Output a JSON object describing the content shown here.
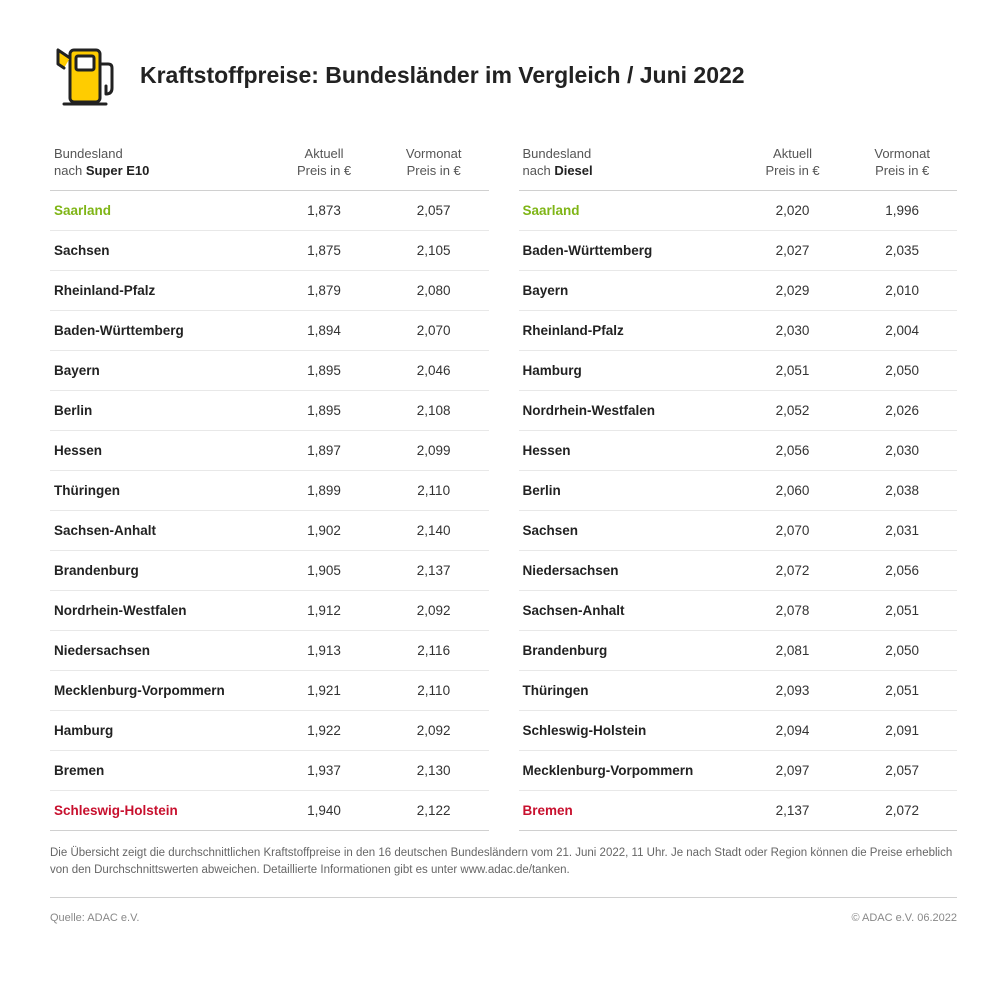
{
  "title": "Kraftstoffpreise: Bundesländer im Vergleich / Juni 2022",
  "colors": {
    "text": "#333333",
    "heading": "#222222",
    "border": "#d0d0d0",
    "row_border": "#e8e8e8",
    "highlight_top": "#7fb516",
    "highlight_bot": "#c8102e",
    "icon_fill": "#ffcc00",
    "icon_stroke": "#222222",
    "footer_text": "#888888"
  },
  "columns": {
    "state_label_prefix": "Bundesland",
    "state_label_sort": "nach ",
    "current_label_l1": "Aktuell",
    "current_label_l2": "Preis in €",
    "prev_label_l1": "Vormonat",
    "prev_label_l2": "Preis in €"
  },
  "tables": [
    {
      "fuel": "Super E10",
      "rows": [
        {
          "state": "Saarland",
          "current": "1,873",
          "prev": "2,057",
          "hl": "top"
        },
        {
          "state": "Sachsen",
          "current": "1,875",
          "prev": "2,105"
        },
        {
          "state": "Rheinland-Pfalz",
          "current": "1,879",
          "prev": "2,080"
        },
        {
          "state": "Baden-Württemberg",
          "current": "1,894",
          "prev": "2,070"
        },
        {
          "state": "Bayern",
          "current": "1,895",
          "prev": "2,046"
        },
        {
          "state": "Berlin",
          "current": "1,895",
          "prev": "2,108"
        },
        {
          "state": "Hessen",
          "current": "1,897",
          "prev": "2,099"
        },
        {
          "state": "Thüringen",
          "current": "1,899",
          "prev": "2,110"
        },
        {
          "state": "Sachsen-Anhalt",
          "current": "1,902",
          "prev": "2,140"
        },
        {
          "state": "Brandenburg",
          "current": "1,905",
          "prev": "2,137"
        },
        {
          "state": "Nordrhein-Westfalen",
          "current": "1,912",
          "prev": "2,092"
        },
        {
          "state": "Niedersachsen",
          "current": "1,913",
          "prev": "2,116"
        },
        {
          "state": "Mecklenburg-Vorpommern",
          "current": "1,921",
          "prev": "2,110"
        },
        {
          "state": "Hamburg",
          "current": "1,922",
          "prev": "2,092"
        },
        {
          "state": "Bremen",
          "current": "1,937",
          "prev": "2,130"
        },
        {
          "state": "Schleswig-Holstein",
          "current": "1,940",
          "prev": "2,122",
          "hl": "bot"
        }
      ]
    },
    {
      "fuel": "Diesel",
      "rows": [
        {
          "state": "Saarland",
          "current": "2,020",
          "prev": "1,996",
          "hl": "top"
        },
        {
          "state": "Baden-Württemberg",
          "current": "2,027",
          "prev": "2,035"
        },
        {
          "state": "Bayern",
          "current": "2,029",
          "prev": "2,010"
        },
        {
          "state": "Rheinland-Pfalz",
          "current": "2,030",
          "prev": "2,004"
        },
        {
          "state": "Hamburg",
          "current": "2,051",
          "prev": "2,050"
        },
        {
          "state": "Nordrhein-Westfalen",
          "current": "2,052",
          "prev": "2,026"
        },
        {
          "state": "Hessen",
          "current": "2,056",
          "prev": "2,030"
        },
        {
          "state": "Berlin",
          "current": "2,060",
          "prev": "2,038"
        },
        {
          "state": "Sachsen",
          "current": "2,070",
          "prev": "2,031"
        },
        {
          "state": "Niedersachsen",
          "current": "2,072",
          "prev": "2,056"
        },
        {
          "state": "Sachsen-Anhalt",
          "current": "2,078",
          "prev": "2,051"
        },
        {
          "state": "Brandenburg",
          "current": "2,081",
          "prev": "2,050"
        },
        {
          "state": "Thüringen",
          "current": "2,093",
          "prev": "2,051"
        },
        {
          "state": "Schleswig-Holstein",
          "current": "2,094",
          "prev": "2,091"
        },
        {
          "state": "Mecklenburg-Vorpommern",
          "current": "2,097",
          "prev": "2,057"
        },
        {
          "state": "Bremen",
          "current": "2,137",
          "prev": "2,072",
          "hl": "bot"
        }
      ]
    }
  ],
  "footnote": "Die Übersicht zeigt die durchschnittlichen Kraftstoffpreise in den 16 deutschen Bundesländern vom 21. Juni 2022, 11 Uhr. Je nach Stadt oder Region können die Preise erheblich von den Durchschnittswerten abweichen. Detaillierte Informationen gibt es unter www.adac.de/tanken.",
  "footer": {
    "source": "Quelle: ADAC e.V.",
    "copyright": "© ADAC e.V. 06.2022"
  }
}
